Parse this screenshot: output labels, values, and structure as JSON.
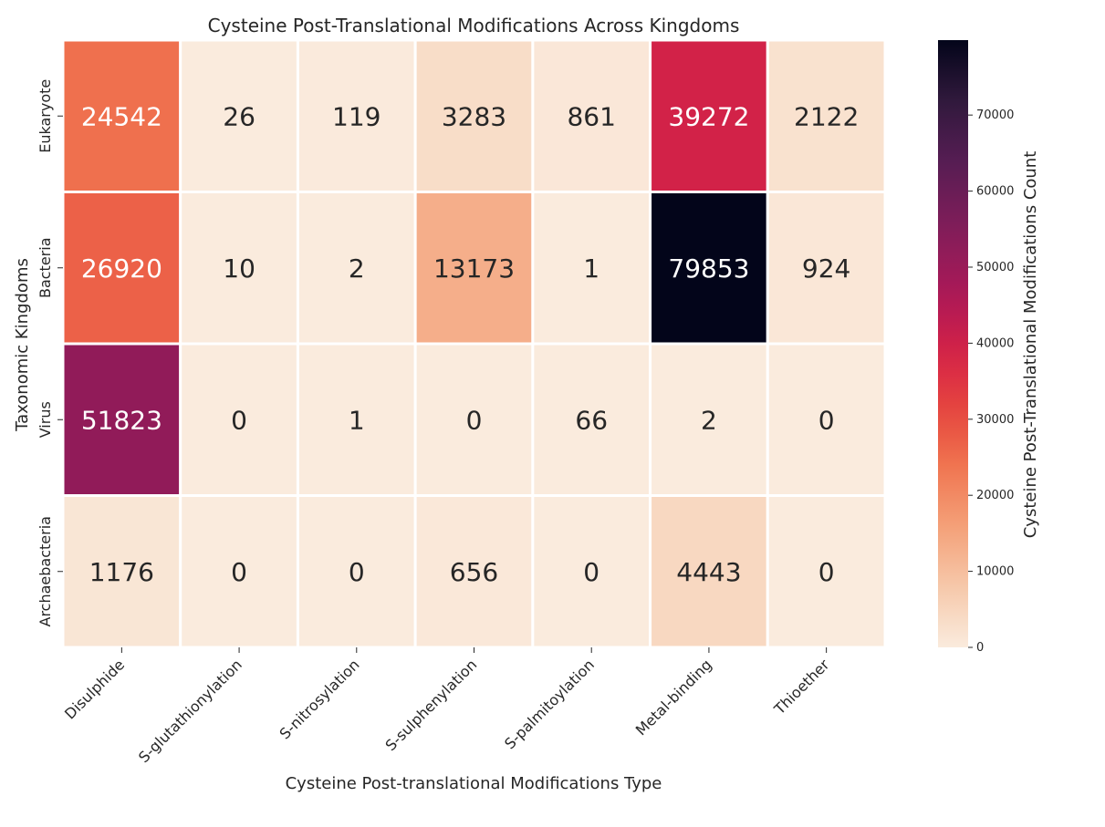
{
  "chart_data": {
    "type": "heatmap",
    "title": "Cysteine Post-Translational Modifications Across Kingdoms",
    "xlabel": "Cysteine Post-translational Modifications Type",
    "ylabel": "Taxonomic Kingdoms",
    "x_categories": [
      "Disulphide",
      "S-glutathionylation",
      "S-nitrosylation",
      "S-sulphenylation",
      "S-palmitoylation",
      "Metal-binding",
      "Thioether"
    ],
    "y_categories": [
      "Eukaryote",
      "Bacteria",
      "Virus",
      "Archaebacteria"
    ],
    "values": [
      [
        24542,
        26,
        119,
        3283,
        861,
        39272,
        2122
      ],
      [
        26920,
        10,
        2,
        13173,
        1,
        79853,
        924
      ],
      [
        51823,
        0,
        1,
        0,
        66,
        2,
        0
      ],
      [
        1176,
        0,
        0,
        656,
        0,
        4443,
        0
      ]
    ],
    "colorbar": {
      "label": "Cysteine Post-Translational Modifications Count",
      "range": [
        0,
        79853
      ],
      "ticks": [
        0,
        10000,
        20000,
        30000,
        40000,
        50000,
        60000,
        70000
      ],
      "colormap": "rocket_r"
    },
    "annotations": true
  }
}
